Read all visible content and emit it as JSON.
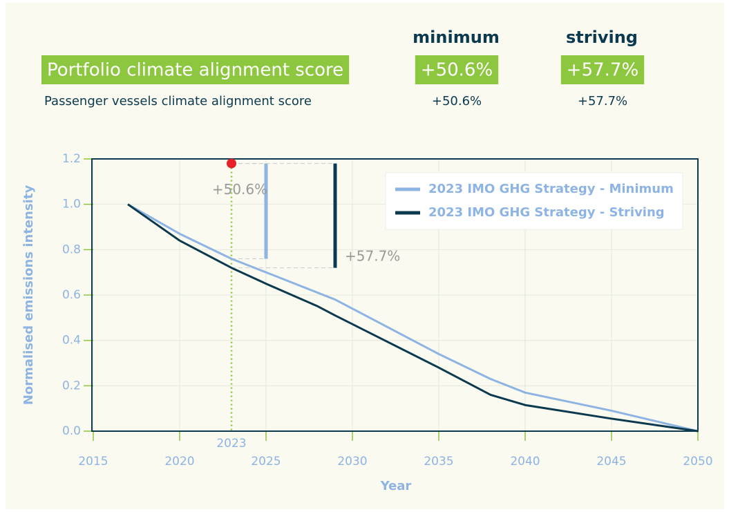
{
  "header": {
    "columns": [
      "minimum",
      "striving"
    ],
    "rows": [
      {
        "label": "Portfolio climate alignment score",
        "values": [
          "+50.6%",
          "+57.7%"
        ]
      },
      {
        "label": "Passenger vessels climate alignment score",
        "values": [
          "+50.6%",
          "+57.7%"
        ]
      }
    ]
  },
  "chart_data": {
    "type": "line",
    "xlabel": "Year",
    "ylabel": "Normalised emissions intensity",
    "xlim": [
      2015,
      2050
    ],
    "xticks": [
      2015,
      2020,
      2025,
      2030,
      2035,
      2040,
      2045,
      2050
    ],
    "ylim": [
      0,
      1.2
    ],
    "yticks": [
      {
        "value": 0,
        "label": "0.0"
      },
      0.2,
      0.4,
      0.6,
      0.8,
      {
        "value": 1,
        "label": "1.0"
      },
      1.2
    ],
    "grid": true,
    "legend": "upper right",
    "series": [
      {
        "name": "2023 IMO GHG Strategy - Minimum",
        "color": "#8db4e2",
        "x": [
          2017,
          2020,
          2023,
          2025,
          2029,
          2030,
          2035,
          2038,
          2040,
          2045,
          2050
        ],
        "values": [
          1.0,
          0.87,
          0.76,
          0.7,
          0.58,
          0.54,
          0.34,
          0.23,
          0.17,
          0.09,
          0.0
        ]
      },
      {
        "name": "2023 IMO GHG Strategy - Striving",
        "color": "#0b3a4f",
        "x": [
          2017,
          2020,
          2023,
          2025,
          2028,
          2029,
          2035,
          2038,
          2040,
          2045,
          2050
        ],
        "values": [
          1.0,
          0.84,
          0.72,
          0.65,
          0.55,
          0.51,
          0.28,
          0.16,
          0.115,
          0.055,
          0.0
        ]
      }
    ],
    "marker": {
      "x": 2023,
      "y": 1.18,
      "label": "2023",
      "color": "#e8202a",
      "line_color": "#8dc63f"
    },
    "brackets": [
      {
        "label": "+50.6%",
        "x": 2025,
        "y": [
          0.76,
          1.18
        ],
        "color": "#8db4e2"
      },
      {
        "label": "+57.7%",
        "x": 2029,
        "y": [
          0.72,
          1.18
        ],
        "color": "#0b3a4f"
      }
    ]
  }
}
